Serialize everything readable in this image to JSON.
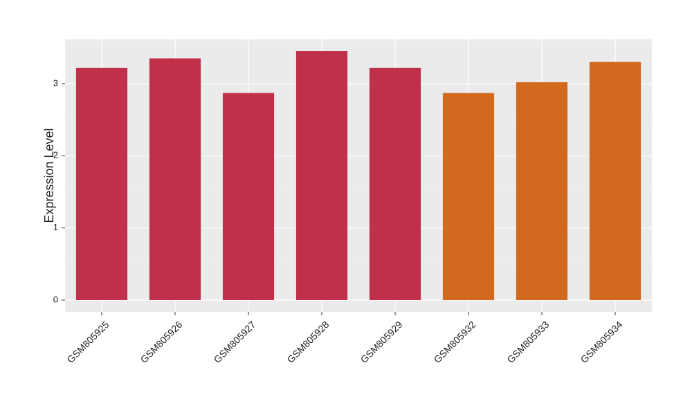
{
  "chart_data": {
    "type": "bar",
    "y_label": "Expression Level",
    "categories": [
      "GSM805925",
      "GSM805926",
      "GSM805927",
      "GSM805928",
      "GSM805929",
      "GSM805932",
      "GSM805933",
      "GSM805934"
    ],
    "values": [
      3.22,
      3.35,
      2.87,
      3.45,
      3.22,
      2.87,
      3.02,
      3.3
    ],
    "colors": [
      "#c1304a",
      "#c1304a",
      "#c1304a",
      "#c1304a",
      "#c1304a",
      "#d2691e",
      "#d2691e",
      "#d2691e"
    ],
    "ylim": [
      -0.163,
      3.613
    ],
    "yticks": [
      0,
      1,
      2,
      3
    ],
    "grid": true
  }
}
